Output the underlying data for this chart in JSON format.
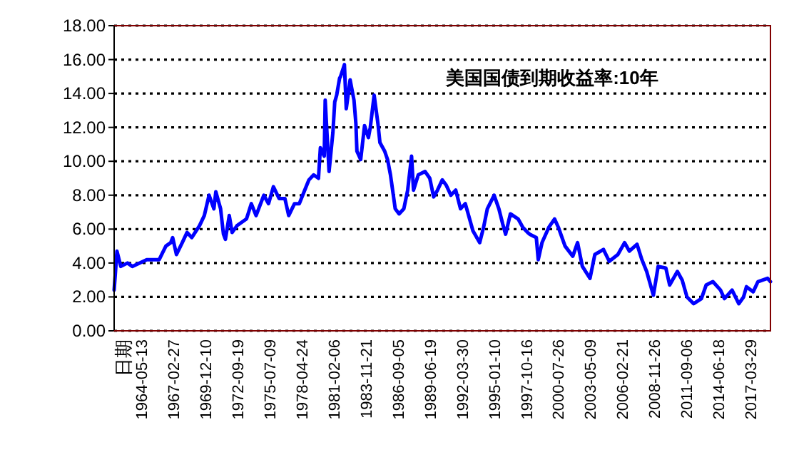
{
  "chart_data": {
    "type": "line",
    "title": "美国国债到期收益率:10年",
    "annotations": [
      "日期"
    ],
    "x": [
      "1962-01-02",
      "1962-04",
      "1962-08",
      "1963-03",
      "1963-08",
      "1964-11",
      "1965-12",
      "1966-07",
      "1966-12",
      "1967-02",
      "1967-06",
      "1967-12",
      "1968-05",
      "1968-10",
      "1969-06",
      "1969-11",
      "1970-04",
      "1970-09",
      "1970-11",
      "1971-04",
      "1971-07",
      "1971-09",
      "1972-01",
      "1972-04",
      "1972-09",
      "1973-07",
      "1973-12",
      "1974-05",
      "1975-01",
      "1975-06",
      "1975-11",
      "1976-05",
      "1976-11",
      "1977-03",
      "1977-09",
      "1978-02",
      "1978-07",
      "1978-12",
      "1979-05",
      "1979-10",
      "1979-12",
      "1980-04",
      "1980-05",
      "1980-09",
      "1981-01",
      "1981-03",
      "1981-05",
      "1981-08",
      "1981-09",
      "1982-01",
      "1982-03",
      "1982-07",
      "1982-11",
      "1983-01",
      "1983-02",
      "1983-06",
      "1983-10",
      "1984-02",
      "1984-04",
      "1984-08",
      "1984-12",
      "1985-02",
      "1985-07",
      "1985-10",
      "1986-01",
      "1986-06",
      "1986-10",
      "1987-03",
      "1987-07",
      "1987-11",
      "1988-01",
      "1988-06",
      "1989-01",
      "1989-06",
      "1989-10",
      "1990-02",
      "1990-07",
      "1990-11",
      "1991-04",
      "1991-09",
      "1992-02",
      "1992-07",
      "1993-03",
      "1993-10",
      "1994-02",
      "1994-06",
      "1995-01",
      "1995-06",
      "1995-10",
      "1996-01",
      "1996-06",
      "1997-02",
      "1997-07",
      "1997-12",
      "1998-02",
      "1998-09",
      "1998-11",
      "1999-03",
      "1999-10",
      "2000-04",
      "2000-08",
      "2001-03",
      "2001-11",
      "2002-04",
      "2002-09",
      "2003-05",
      "2003-10",
      "2004-07",
      "2005-01",
      "2005-10",
      "2006-05",
      "2006-10",
      "2007-06",
      "2007-11",
      "2008-04",
      "2008-11",
      "2009-04",
      "2009-12",
      "2010-04",
      "2010-12",
      "2011-05",
      "2011-10",
      "2012-05",
      "2013-01",
      "2013-06",
      "2014-01",
      "2014-09",
      "2015-01",
      "2015-09",
      "2016-04",
      "2016-09",
      "2016-12",
      "2017-07",
      "2017-12",
      "2018-10",
      "2019-01"
    ],
    "series": [
      {
        "color": "#0000ff",
        "values": [
          2.4,
          4.7,
          3.8,
          4.0,
          3.8,
          4.2,
          4.2,
          5.0,
          5.2,
          5.5,
          4.5,
          5.2,
          5.8,
          5.5,
          6.2,
          6.8,
          8.0,
          7.2,
          8.2,
          7.2,
          5.7,
          5.4,
          6.8,
          5.8,
          6.2,
          6.6,
          7.5,
          6.8,
          8.0,
          7.5,
          8.5,
          7.8,
          7.8,
          6.8,
          7.5,
          7.5,
          8.2,
          8.9,
          9.2,
          9.0,
          10.8,
          10.3,
          13.6,
          9.4,
          11.7,
          13.5,
          13.9,
          14.9,
          15.0,
          15.7,
          13.1,
          14.8,
          13.6,
          12.2,
          10.6,
          10.1,
          12.1,
          11.4,
          12.0,
          13.9,
          12.2,
          11.1,
          10.6,
          10.1,
          9.2,
          7.2,
          6.9,
          7.2,
          8.3,
          10.3,
          8.3,
          9.2,
          9.4,
          9.0,
          7.9,
          8.3,
          8.9,
          8.6,
          8.0,
          8.3,
          7.2,
          7.5,
          5.9,
          5.2,
          6.1,
          7.2,
          8.0,
          7.2,
          6.3,
          5.7,
          6.9,
          6.6,
          6.1,
          5.8,
          5.7,
          5.5,
          4.2,
          5.2,
          6.1,
          6.6,
          6.1,
          5.0,
          4.4,
          5.2,
          3.8,
          3.1,
          4.5,
          4.8,
          4.1,
          4.5,
          5.2,
          4.7,
          5.1,
          4.2,
          3.5,
          2.1,
          3.8,
          3.7,
          2.7,
          3.5,
          3.0,
          2.0,
          1.6,
          1.9,
          2.7,
          2.9,
          2.4,
          1.9,
          2.4,
          1.6,
          2.0,
          2.6,
          2.3,
          2.9,
          3.1,
          2.9
        ]
      }
    ],
    "xlim": [
      "1962-01-02",
      "2019-01"
    ],
    "xticks": [
      {
        "value": "1964-05-13",
        "label": "1964-05-13"
      },
      {
        "value": "1967-02-27",
        "label": "1967-02-27"
      },
      {
        "value": "1969-12-10",
        "label": "1969-12-10"
      },
      {
        "value": "1972-09-19",
        "label": "1972-09-19"
      },
      {
        "value": "1975-07-09",
        "label": "1975-07-09"
      },
      {
        "value": "1978-04-24",
        "label": "1978-04-24"
      },
      {
        "value": "1981-02-06",
        "label": "1981-02-06"
      },
      {
        "value": "1983-11-21",
        "label": "1983-11-21"
      },
      {
        "value": "1986-09-05",
        "label": "1986-09-05"
      },
      {
        "value": "1989-06-19",
        "label": "1989-06-19"
      },
      {
        "value": "1992-03-30",
        "label": "1992-03-30"
      },
      {
        "value": "1995-01-10",
        "label": "1995-01-10"
      },
      {
        "value": "1997-10-16",
        "label": "1997-10-16"
      },
      {
        "value": "2000-07-26",
        "label": "2000-07-26"
      },
      {
        "value": "2003-05-09",
        "label": "2003-05-09"
      },
      {
        "value": "2006-02-21",
        "label": "2006-02-21"
      },
      {
        "value": "2008-11-26",
        "label": "2008-11-26"
      },
      {
        "value": "2011-09-06",
        "label": "2011-09-06"
      },
      {
        "value": "2014-06-18",
        "label": "2014-06-18"
      },
      {
        "value": "2017-03-29",
        "label": "2017-03-29"
      }
    ],
    "ylim": [
      0,
      18
    ],
    "yticks": [
      {
        "value": 0,
        "label": "0.00"
      },
      {
        "value": 2,
        "label": "2.00"
      },
      {
        "value": 4,
        "label": "4.00"
      },
      {
        "value": 6,
        "label": "6.00"
      },
      {
        "value": 8,
        "label": "8.00"
      },
      {
        "value": 10,
        "label": "10.00"
      },
      {
        "value": 12,
        "label": "12.00"
      },
      {
        "value": 14,
        "label": "14.00"
      },
      {
        "value": 16,
        "label": "16.00"
      },
      {
        "value": 18,
        "label": "18.00"
      }
    ],
    "grid": "y",
    "line_style": "solid",
    "marker": "none"
  }
}
